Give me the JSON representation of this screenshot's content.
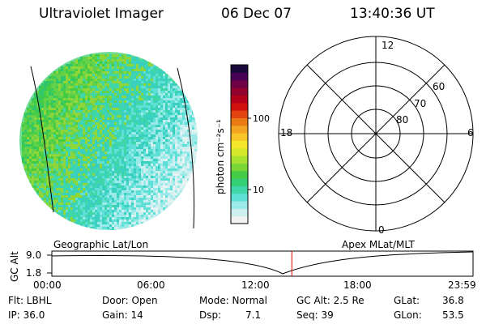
{
  "header": {
    "instrument": "Ultraviolet Imager",
    "date": "06 Dec 07",
    "time": "13:40:36 UT"
  },
  "colorbar": {
    "unit_label": "photon cm⁻²s⁻¹",
    "ticks": [
      "100",
      "10"
    ],
    "colors": [
      "#f2f2f2",
      "#cdeff0",
      "#9be9e8",
      "#5fe0d6",
      "#3fd6a8",
      "#35cf78",
      "#44cc44",
      "#79d634",
      "#a8e030",
      "#d6e82c",
      "#f4e62a",
      "#f6c528",
      "#f2a41e",
      "#ea7a14",
      "#e2430f",
      "#d0100d",
      "#b4001a",
      "#92002e",
      "#6e0046",
      "#460054",
      "#1a0a3c"
    ]
  },
  "polar_plot": {
    "lat_labels": [
      "60",
      "70",
      "80"
    ],
    "mlt_labels": {
      "top": "12",
      "bottom": "0",
      "left": "18",
      "right": "6"
    }
  },
  "orbit_panel": {
    "left_title": "Geographic Lat/Lon",
    "right_title": "Apex MLat/MLT",
    "axis_label": "GC Alt",
    "y_ticks": [
      "9.0",
      "1.8"
    ],
    "time_ticks": [
      "00:00",
      "06:00",
      "12:00",
      "18:00",
      "23:59"
    ],
    "current_time_fraction": 0.5698
  },
  "info": {
    "filter": "Flt: LBHL",
    "ip": "IP: 36.0",
    "door": "Door: Open",
    "gain": "Gain: 14",
    "mode": "Mode: Normal",
    "dsp_label": "Dsp:",
    "dsp_value": "7.1",
    "gc_alt": "GC Alt: 2.5 Re",
    "seq": "Seq: 39",
    "glat_label": "GLat:",
    "glat_value": "36.8",
    "glon_label": "GLon:",
    "glon_value": "53.5"
  }
}
